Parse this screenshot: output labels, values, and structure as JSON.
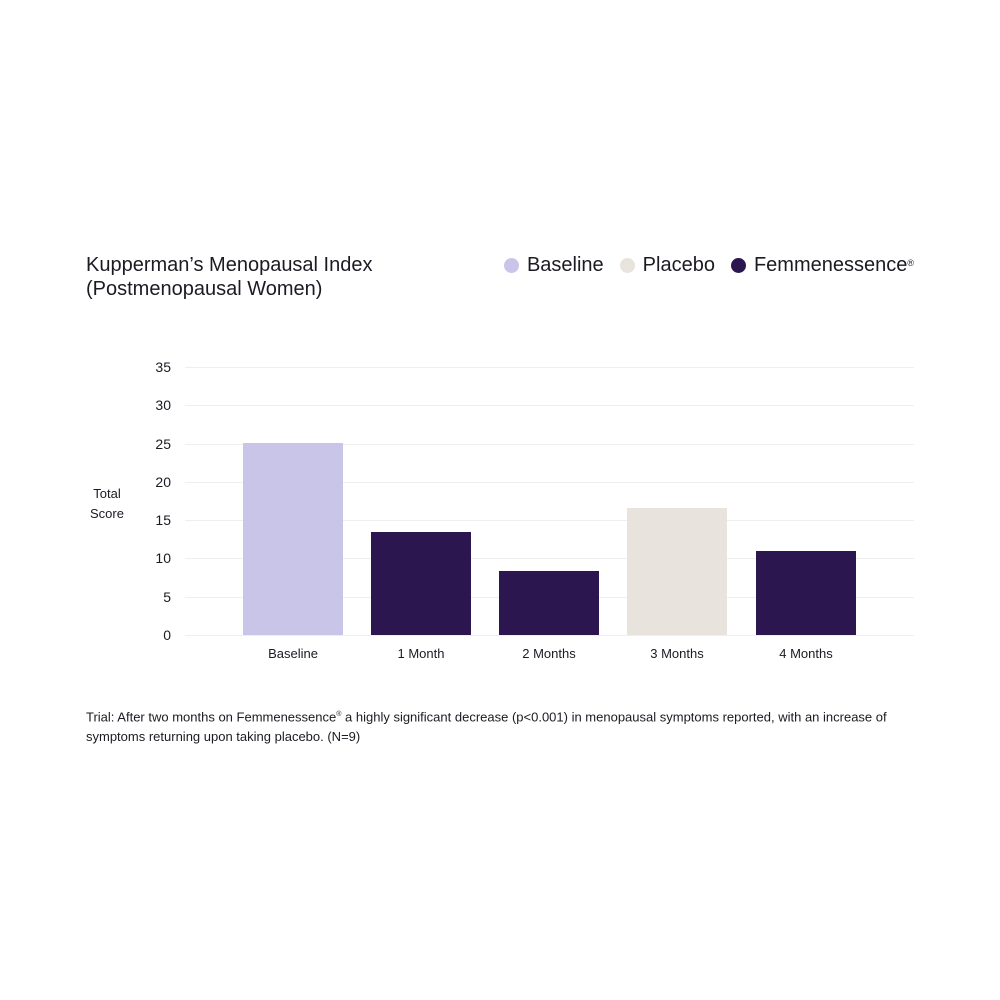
{
  "chart": {
    "title_line1": "Kupperman’s Menopausal Index",
    "title_line2": "(Postmenopausal Women)",
    "y_axis_label_line1": "Total",
    "y_axis_label_line2": "Score",
    "legend": [
      {
        "label": "Baseline",
        "color": "#c9c5e8",
        "mark": ""
      },
      {
        "label": "Placebo",
        "color": "#e8e4dd",
        "mark": ""
      },
      {
        "label": "Femmenessence",
        "color": "#2c1650",
        "mark": "®"
      }
    ],
    "footnote_part1": "Trial: After two months on Femmenessence",
    "footnote_mark": "®",
    "footnote_part2": " a highly significant decrease (p<0.001) in menopausal symptoms reported, with an increase of symptoms returning upon taking placebo. (N=9)"
  },
  "chart_data": {
    "type": "bar",
    "title": "Kupperman’s Menopausal Index (Postmenopausal Women)",
    "xlabel": "",
    "ylabel": "Total Score",
    "ylim": [
      0,
      35
    ],
    "yticks": [
      0,
      5,
      10,
      15,
      20,
      25,
      30,
      35
    ],
    "grid": true,
    "legend_position": "top-right",
    "categories": [
      "Baseline",
      "1 Month",
      "2 Months",
      "3 Months",
      "4 Months"
    ],
    "values": [
      25.1,
      13.4,
      8.4,
      16.6,
      11.0
    ],
    "series_assignment": [
      "Baseline",
      "Femmenessence",
      "Femmenessence",
      "Placebo",
      "Femmenessence"
    ],
    "colors": [
      "#c9c5e8",
      "#2c1650",
      "#2c1650",
      "#e8e4dd",
      "#2c1650"
    ],
    "legend": [
      "Baseline",
      "Placebo",
      "Femmenessence®"
    ],
    "annotation": "Trial: After two months on Femmenessence® a highly significant decrease (p<0.001) in menopausal symptoms reported, with an increase of symptoms returning upon taking placebo. (N=9)"
  }
}
